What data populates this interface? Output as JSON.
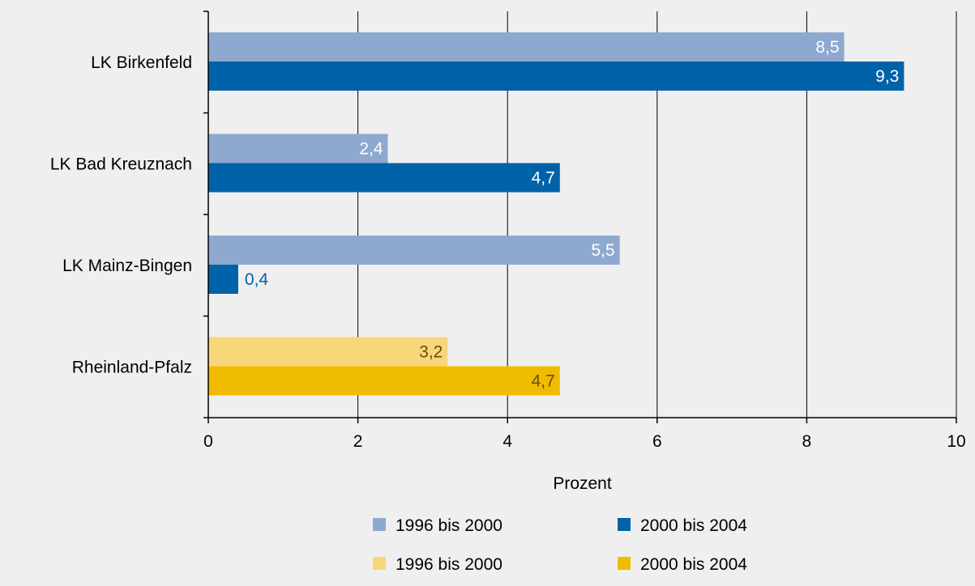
{
  "chart_data": {
    "type": "bar",
    "orientation": "horizontal",
    "categories": [
      "LK Birkenfeld",
      "LK Bad Kreuznach",
      "LK Mainz-Bingen",
      "Rheinland-Pfalz"
    ],
    "series": [
      {
        "name": "1996 bis 2000",
        "values": [
          8.5,
          2.4,
          5.5,
          3.2
        ],
        "labels": [
          "8,5",
          "2,4",
          "5,5",
          "3,2"
        ],
        "colors": [
          "#8ea9d0",
          "#8ea9d0",
          "#8ea9d0",
          "#f8d77a"
        ],
        "label_colors": [
          "#ffffff",
          "#ffffff",
          "#ffffff",
          "#6b4a10"
        ]
      },
      {
        "name": "2000 bis 2004",
        "values": [
          9.3,
          4.7,
          0.4,
          4.7
        ],
        "labels": [
          "9,3",
          "4,7",
          "0,4",
          "4,7"
        ],
        "colors": [
          "#0062a8",
          "#0062a8",
          "#0062a8",
          "#f0bc00"
        ],
        "label_colors": [
          "#ffffff",
          "#ffffff",
          "#0062a8",
          "#6b4a10"
        ]
      }
    ],
    "xlabel": "Prozent",
    "xlim": [
      0,
      10
    ],
    "xticks": [
      0,
      2,
      4,
      6,
      8,
      10
    ],
    "xtick_labels": [
      "0",
      "2",
      "4",
      "6",
      "8",
      "10"
    ],
    "grid": "vertical",
    "legend": {
      "placement": "bottom",
      "entries": [
        {
          "label": "1996 bis 2000",
          "color": "#8ea9d0"
        },
        {
          "label": "2000 bis 2004",
          "color": "#0062a8"
        },
        {
          "label": "1996 bis 2000",
          "color": "#f8d77a"
        },
        {
          "label": "2000 bis 2004",
          "color": "#f0bc00"
        }
      ]
    },
    "colors": {
      "background": "#efefef",
      "axis": "#000000",
      "grid": "#000000",
      "text": "#000000"
    }
  }
}
